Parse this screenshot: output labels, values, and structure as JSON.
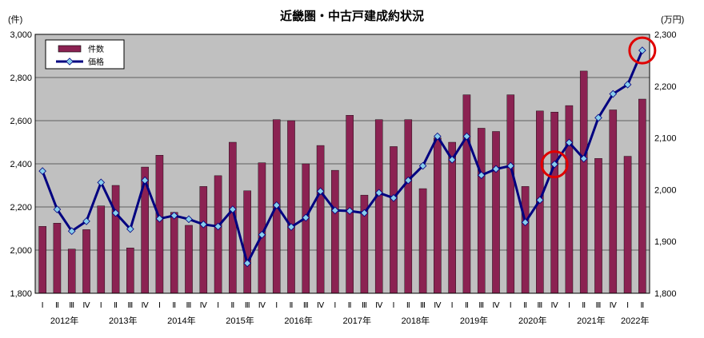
{
  "chart_data": {
    "type": "bar",
    "title": "近畿圏・中古戸建成約状況",
    "left_unit": "(件)",
    "right_unit": "(万円)",
    "left_ylim": [
      1800,
      3000
    ],
    "right_ylim": [
      1800,
      2300
    ],
    "left_ticks": [
      "1,800",
      "2,000",
      "2,200",
      "2,400",
      "2,600",
      "2,800",
      "3,000"
    ],
    "right_ticks": [
      "1,800",
      "1,900",
      "2,000",
      "2,100",
      "2,200",
      "2,300"
    ],
    "legend": {
      "bar_label": "件数",
      "line_label": "価格",
      "placement": "top-left"
    },
    "categories": [
      "Ⅰ",
      "Ⅱ",
      "Ⅲ",
      "Ⅳ",
      "Ⅰ",
      "Ⅱ",
      "Ⅲ",
      "Ⅳ",
      "Ⅰ",
      "Ⅱ",
      "Ⅲ",
      "Ⅳ",
      "Ⅰ",
      "Ⅱ",
      "Ⅲ",
      "Ⅳ",
      "Ⅰ",
      "Ⅱ",
      "Ⅲ",
      "Ⅳ",
      "Ⅰ",
      "Ⅱ",
      "Ⅲ",
      "Ⅳ",
      "Ⅰ",
      "Ⅱ",
      "Ⅲ",
      "Ⅳ",
      "Ⅰ",
      "Ⅱ",
      "Ⅲ",
      "Ⅳ",
      "Ⅰ",
      "Ⅱ",
      "Ⅲ",
      "Ⅳ",
      "Ⅰ",
      "Ⅱ",
      "Ⅲ",
      "Ⅳ",
      "Ⅰ",
      "Ⅱ"
    ],
    "years": [
      "2012年",
      "2013年",
      "2014年",
      "2015年",
      "2016年",
      "2017年",
      "2018年",
      "2019年",
      "2020年",
      "2021年",
      "2022年"
    ],
    "series": [
      {
        "name": "件数",
        "axis": "left",
        "values": [
          2110,
          2125,
          2005,
          2095,
          2205,
          2300,
          2010,
          2385,
          2440,
          2175,
          2115,
          2295,
          2345,
          2500,
          2275,
          2405,
          2605,
          2600,
          2400,
          2485,
          2370,
          2625,
          2255,
          2605,
          2480,
          2605,
          2285,
          2520,
          2500,
          2720,
          2565,
          2550,
          2720,
          2295,
          2645,
          2640,
          2670,
          2830,
          2425,
          2650,
          2435,
          2700
        ]
      },
      {
        "name": "価格",
        "axis": "right",
        "values": [
          2036,
          1962,
          1920,
          1939,
          2014,
          1955,
          1924,
          2018,
          1944,
          1950,
          1943,
          1933,
          1929,
          1962,
          1858,
          1913,
          1970,
          1928,
          1946,
          1997,
          1960,
          1959,
          1955,
          1994,
          1984,
          2018,
          2046,
          2103,
          2058,
          2103,
          2028,
          2040,
          2046,
          1937,
          1980,
          2049,
          2091,
          2060,
          2139,
          2185,
          2203,
          2269
        ]
      }
    ],
    "grid": true,
    "highlight_colors": {
      "bar": "#8b2252",
      "line": "#000080",
      "marker": "#87ceeb",
      "circle": "#e00000",
      "plot_bg": "#c0c0c0"
    }
  }
}
